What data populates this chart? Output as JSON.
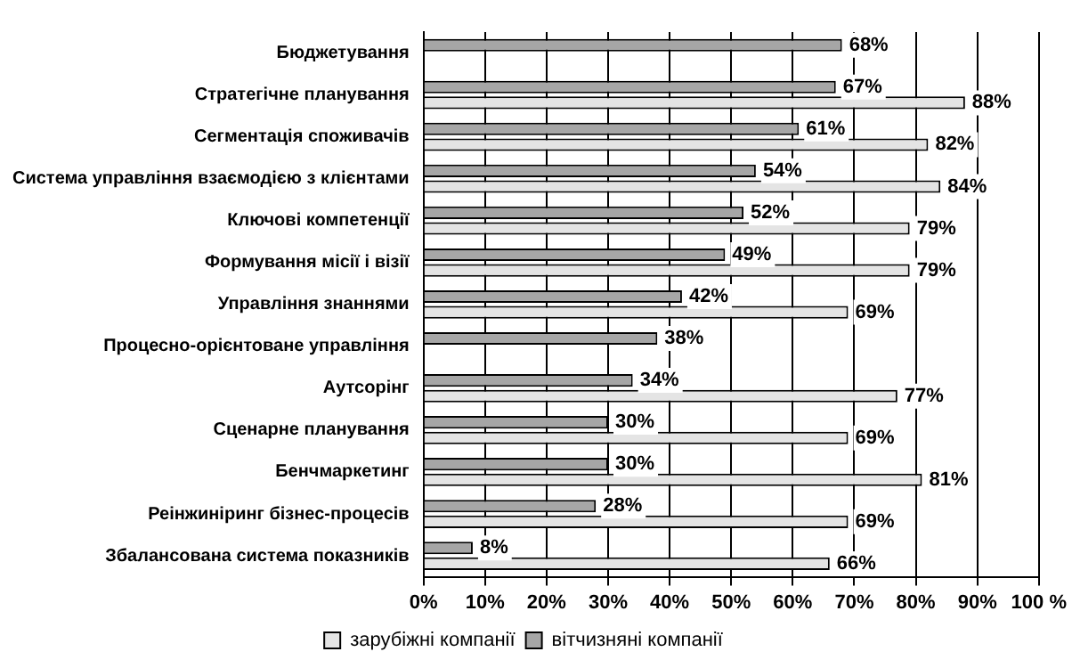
{
  "chart_data": {
    "type": "bar",
    "orientation": "horizontal",
    "categories": [
      "Бюджетування",
      "Стратегічне планування",
      "Сегментація споживачів",
      "Система управління взаємодією з клієнтами",
      "Ключові компетенції",
      "Формування місії і візії",
      "Управління знаннями",
      "Процесно-орієнтоване управління",
      "Аутсорінг",
      "Сценарне планування",
      "Бенчмаркетинг",
      "Реінжиніринг бізнес-процесів",
      "Збалансована система показників"
    ],
    "series": [
      {
        "name": "вітчизняні компанії",
        "color": "#a6a6a6",
        "values": [
          68,
          67,
          61,
          54,
          52,
          49,
          42,
          38,
          34,
          30,
          30,
          28,
          8
        ],
        "value_labels": [
          "68%",
          "67%",
          "61%",
          "54%",
          "52%",
          "49%",
          "42%",
          "38%",
          "34%",
          "30%",
          "30%",
          "28%",
          "8%"
        ]
      },
      {
        "name": "зарубіжні компанії",
        "color": "#e4e4e4",
        "values": [
          null,
          88,
          82,
          84,
          79,
          79,
          69,
          null,
          77,
          69,
          81,
          69,
          66
        ],
        "value_labels": [
          null,
          "88%",
          "82%",
          "84%",
          "79%",
          "79%",
          "69%",
          null,
          "77%",
          "69%",
          "81%",
          "69%",
          "66%"
        ]
      }
    ],
    "xlim": [
      0,
      100
    ],
    "xticks": [
      {
        "value": 0,
        "label": "0%"
      },
      {
        "value": 10,
        "label": "10%"
      },
      {
        "value": 20,
        "label": "20%"
      },
      {
        "value": 30,
        "label": "30%"
      },
      {
        "value": 40,
        "label": "40%"
      },
      {
        "value": 50,
        "label": "50%"
      },
      {
        "value": 60,
        "label": "60%"
      },
      {
        "value": 70,
        "label": "70%"
      },
      {
        "value": 80,
        "label": "80%"
      },
      {
        "value": 90,
        "label": "90%"
      },
      {
        "value": 100,
        "label": "100 %"
      }
    ],
    "grid": "x",
    "legend": "bottom"
  }
}
